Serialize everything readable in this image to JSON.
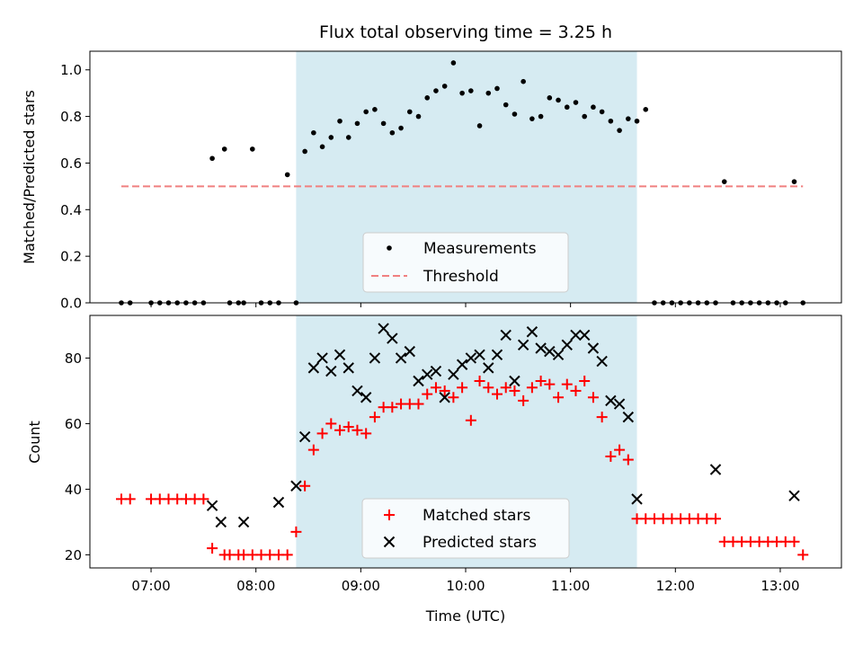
{
  "chart_data": [
    {
      "type": "scatter",
      "title": "Flux total observing time = 3.25 h",
      "xlabel": "",
      "ylabel": "Matched/Predicted stars",
      "ylim": [
        0,
        1.08
      ],
      "yticks": [
        "0.0",
        "0.2",
        "0.4",
        "0.6",
        "0.8",
        "1.0"
      ],
      "shaded_region": {
        "from": "08:23",
        "to": "11:38"
      },
      "legend": {
        "position": "lower-center",
        "entries": [
          "Measurements",
          "Threshold"
        ]
      },
      "series": [
        {
          "name": "Measurements",
          "marker": "dot",
          "color": "#000000",
          "x": [
            "06:43",
            "06:48",
            "07:00",
            "07:05",
            "07:10",
            "07:15",
            "07:20",
            "07:25",
            "07:30",
            "07:35",
            "07:42",
            "07:45",
            "07:50",
            "07:53",
            "07:58",
            "08:03",
            "08:08",
            "08:13",
            "08:18",
            "08:23",
            "08:28",
            "08:33",
            "08:38",
            "08:43",
            "08:48",
            "08:53",
            "08:58",
            "09:03",
            "09:08",
            "09:13",
            "09:18",
            "09:23",
            "09:28",
            "09:33",
            "09:38",
            "09:43",
            "09:48",
            "09:53",
            "09:58",
            "10:03",
            "10:08",
            "10:13",
            "10:18",
            "10:23",
            "10:28",
            "10:33",
            "10:38",
            "10:43",
            "10:48",
            "10:53",
            "10:58",
            "11:03",
            "11:08",
            "11:13",
            "11:18",
            "11:23",
            "11:28",
            "11:33",
            "11:38",
            "11:43",
            "11:48",
            "11:53",
            "11:58",
            "12:03",
            "12:08",
            "12:13",
            "12:18",
            "12:23",
            "12:28",
            "12:33",
            "12:38",
            "12:43",
            "12:48",
            "12:53",
            "12:58",
            "13:03",
            "13:08",
            "13:13"
          ],
          "y": [
            0,
            0,
            0,
            0,
            0,
            0,
            0,
            0,
            0,
            0.62,
            0.66,
            0,
            0,
            0,
            0.66,
            0,
            0,
            0,
            0.55,
            0,
            0.65,
            0.73,
            0.67,
            0.71,
            0.78,
            0.71,
            0.77,
            0.82,
            0.83,
            0.77,
            0.73,
            0.75,
            0.82,
            0.8,
            0.88,
            0.91,
            0.93,
            1.03,
            0.9,
            0.91,
            0.76,
            0.9,
            0.92,
            0.85,
            0.81,
            0.95,
            0.79,
            0.8,
            0.88,
            0.87,
            0.84,
            0.86,
            0.8,
            0.84,
            0.82,
            0.78,
            0.74,
            0.79,
            0.78,
            0.83,
            0,
            0,
            0,
            0,
            0,
            0,
            0,
            0,
            0.52,
            0,
            0,
            0,
            0,
            0,
            0,
            0,
            0.52,
            0
          ]
        },
        {
          "name": "Threshold",
          "marker": "dashed-line",
          "color": "#f08080",
          "x": [
            "06:43",
            "13:13"
          ],
          "y": [
            0.5,
            0.5
          ]
        }
      ]
    },
    {
      "type": "scatter",
      "title": "",
      "xlabel": "Time (UTC)",
      "ylabel": "Count",
      "ylim": [
        16,
        93
      ],
      "yticks": [
        "20",
        "40",
        "60",
        "80"
      ],
      "xticks": [
        "07:00",
        "08:00",
        "09:00",
        "10:00",
        "11:00",
        "12:00",
        "13:00"
      ],
      "shaded_region": {
        "from": "08:23",
        "to": "11:38"
      },
      "legend": {
        "position": "lower-center",
        "entries": [
          "Matched stars",
          "Predicted stars"
        ]
      },
      "series": [
        {
          "name": "Matched stars",
          "marker": "plus",
          "color": "#ff0000",
          "x": [
            "06:43",
            "06:48",
            "07:00",
            "07:05",
            "07:10",
            "07:15",
            "07:20",
            "07:25",
            "07:30",
            "07:35",
            "07:42",
            "07:45",
            "07:50",
            "07:53",
            "07:58",
            "08:03",
            "08:08",
            "08:13",
            "08:18",
            "08:23",
            "08:28",
            "08:33",
            "08:38",
            "08:43",
            "08:48",
            "08:53",
            "08:58",
            "09:03",
            "09:08",
            "09:13",
            "09:18",
            "09:23",
            "09:28",
            "09:33",
            "09:38",
            "09:43",
            "09:48",
            "09:53",
            "09:58",
            "10:03",
            "10:08",
            "10:13",
            "10:18",
            "10:23",
            "10:28",
            "10:33",
            "10:38",
            "10:43",
            "10:48",
            "10:53",
            "10:58",
            "11:03",
            "11:08",
            "11:13",
            "11:18",
            "11:23",
            "11:28",
            "11:33",
            "11:38",
            "11:43",
            "11:48",
            "11:53",
            "11:58",
            "12:03",
            "12:08",
            "12:13",
            "12:18",
            "12:23",
            "12:28",
            "12:33",
            "12:38",
            "12:43",
            "12:48",
            "12:53",
            "12:58",
            "13:03",
            "13:08",
            "13:13"
          ],
          "y": [
            37,
            37,
            37,
            37,
            37,
            37,
            37,
            37,
            37,
            22,
            20,
            20,
            20,
            20,
            20,
            20,
            20,
            20,
            20,
            27,
            41,
            52,
            57,
            60,
            58,
            59,
            58,
            57,
            62,
            65,
            65,
            66,
            66,
            66,
            69,
            71,
            70,
            68,
            71,
            61,
            73,
            71,
            69,
            71,
            70,
            67,
            71,
            73,
            72,
            68,
            72,
            70,
            73,
            68,
            62,
            50,
            52,
            49,
            31,
            31,
            31,
            31,
            31,
            31,
            31,
            31,
            31,
            31,
            24,
            24,
            24,
            24,
            24,
            24,
            24,
            24,
            24,
            20
          ]
        },
        {
          "name": "Predicted stars",
          "marker": "x",
          "color": "#000000",
          "x": [
            "07:35",
            "07:40",
            "07:53",
            "08:13",
            "08:23",
            "08:28",
            "08:33",
            "08:38",
            "08:43",
            "08:48",
            "08:53",
            "08:58",
            "09:03",
            "09:08",
            "09:13",
            "09:18",
            "09:23",
            "09:28",
            "09:33",
            "09:38",
            "09:43",
            "09:48",
            "09:53",
            "09:58",
            "10:03",
            "10:08",
            "10:13",
            "10:18",
            "10:23",
            "10:28",
            "10:33",
            "10:38",
            "10:43",
            "10:48",
            "10:53",
            "10:58",
            "11:03",
            "11:08",
            "11:13",
            "11:18",
            "11:23",
            "11:28",
            "11:33",
            "11:38",
            "12:23",
            "13:08"
          ],
          "y": [
            35,
            30,
            30,
            36,
            41,
            56,
            77,
            80,
            76,
            81,
            77,
            70,
            68,
            80,
            89,
            86,
            80,
            82,
            73,
            75,
            76,
            68,
            75,
            78,
            80,
            81,
            77,
            81,
            87,
            73,
            84,
            88,
            83,
            82,
            81,
            84,
            87,
            87,
            83,
            79,
            67,
            66,
            62,
            37,
            46,
            38
          ]
        }
      ]
    }
  ]
}
